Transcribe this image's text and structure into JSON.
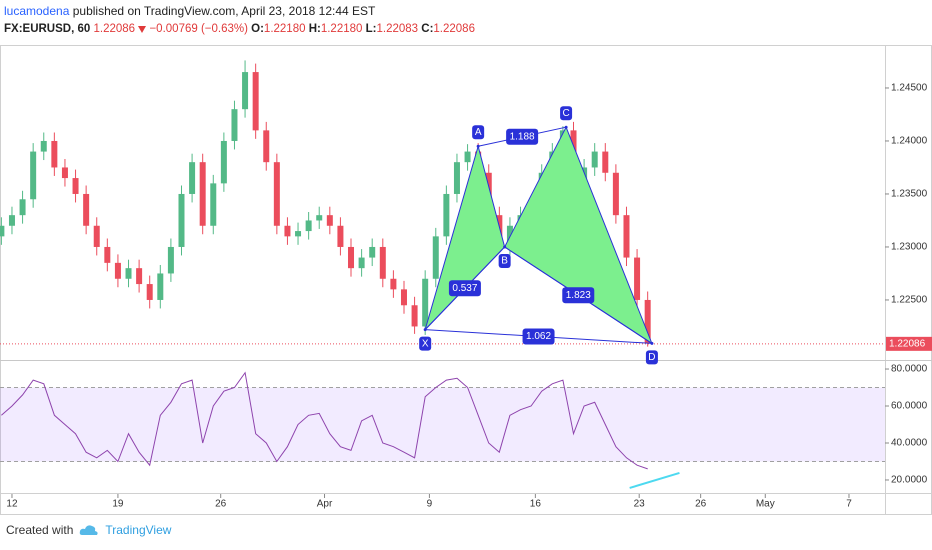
{
  "header": {
    "author": "lucamodena",
    "published": "published on TradingView.com, April 23, 2018 12:44 EST"
  },
  "legend": {
    "symbol": "FX:EURUSD, 60",
    "last": "1.22086",
    "change": "−0.00769 (−0.63%)",
    "open_label": "O:",
    "open": "1.22180",
    "high_label": "H:",
    "high": "1.22180",
    "low_label": "L:",
    "low": "1.22083",
    "close_label": "C:",
    "close": "1.22086"
  },
  "footer": {
    "created": "Created with",
    "brand": "TradingView"
  },
  "chart_data": {
    "type": "candlestick",
    "grid": false,
    "up_color": "#53b987",
    "down_color": "#eb4d5c",
    "x": [
      -1,
      0,
      1,
      2,
      3,
      4,
      5,
      6,
      7,
      8,
      9,
      10,
      11,
      12,
      13,
      14,
      15,
      16,
      17,
      18,
      19,
      20,
      21,
      22,
      23,
      24,
      25,
      26,
      27,
      28,
      29,
      30,
      31,
      32,
      33,
      34,
      35,
      36,
      37,
      38,
      39,
      40,
      41,
      42,
      43,
      44,
      45,
      46,
      47,
      48,
      49,
      50,
      51,
      52,
      53,
      54,
      55,
      56,
      57,
      58,
      59,
      60
    ],
    "candles": [
      [
        1.231,
        1.2328,
        1.2302,
        1.232
      ],
      [
        1.232,
        1.2338,
        1.2312,
        1.233
      ],
      [
        1.233,
        1.2353,
        1.2322,
        1.2345
      ],
      [
        1.2345,
        1.2398,
        1.2337,
        1.239
      ],
      [
        1.239,
        1.2408,
        1.2382,
        1.24
      ],
      [
        1.24,
        1.2408,
        1.2367,
        1.2375
      ],
      [
        1.2375,
        1.2383,
        1.2357,
        1.2365
      ],
      [
        1.2365,
        1.2373,
        1.2342,
        1.235
      ],
      [
        1.235,
        1.2358,
        1.2312,
        1.232
      ],
      [
        1.232,
        1.2328,
        1.2292,
        1.23
      ],
      [
        1.23,
        1.2308,
        1.2277,
        1.2285
      ],
      [
        1.2285,
        1.2293,
        1.2262,
        1.227
      ],
      [
        1.227,
        1.2288,
        1.2262,
        1.228
      ],
      [
        1.228,
        1.2288,
        1.2257,
        1.2265
      ],
      [
        1.2265,
        1.2273,
        1.2242,
        1.225
      ],
      [
        1.225,
        1.2283,
        1.2242,
        1.2275
      ],
      [
        1.2275,
        1.2308,
        1.2267,
        1.23
      ],
      [
        1.23,
        1.2358,
        1.2292,
        1.235
      ],
      [
        1.235,
        1.2388,
        1.2342,
        1.238
      ],
      [
        1.238,
        1.2388,
        1.2312,
        1.232
      ],
      [
        1.232,
        1.2368,
        1.2312,
        1.236
      ],
      [
        1.236,
        1.2408,
        1.2352,
        1.24
      ],
      [
        1.24,
        1.2438,
        1.2392,
        1.243
      ],
      [
        1.243,
        1.2476,
        1.2422,
        1.2465
      ],
      [
        1.2465,
        1.2473,
        1.2402,
        1.241
      ],
      [
        1.241,
        1.2418,
        1.2372,
        1.238
      ],
      [
        1.238,
        1.2388,
        1.2312,
        1.232
      ],
      [
        1.232,
        1.2328,
        1.2302,
        1.231
      ],
      [
        1.231,
        1.2323,
        1.2302,
        1.2315
      ],
      [
        1.2315,
        1.2333,
        1.2307,
        1.2325
      ],
      [
        1.2325,
        1.2338,
        1.2317,
        1.233
      ],
      [
        1.233,
        1.2338,
        1.2312,
        1.232
      ],
      [
        1.232,
        1.2328,
        1.2292,
        1.23
      ],
      [
        1.23,
        1.2308,
        1.2272,
        1.228
      ],
      [
        1.228,
        1.2298,
        1.2272,
        1.229
      ],
      [
        1.229,
        1.2308,
        1.2282,
        1.23
      ],
      [
        1.23,
        1.2308,
        1.2262,
        1.227
      ],
      [
        1.227,
        1.2278,
        1.2252,
        1.226
      ],
      [
        1.226,
        1.2268,
        1.2237,
        1.2245
      ],
      [
        1.2245,
        1.2253,
        1.2218,
        1.2225
      ],
      [
        1.2225,
        1.2278,
        1.2217,
        1.227
      ],
      [
        1.227,
        1.2318,
        1.2262,
        1.231
      ],
      [
        1.231,
        1.2358,
        1.2302,
        1.235
      ],
      [
        1.235,
        1.2388,
        1.2342,
        1.238
      ],
      [
        1.238,
        1.2397,
        1.2372,
        1.239
      ],
      [
        1.239,
        1.2398,
        1.2362,
        1.237
      ],
      [
        1.237,
        1.2378,
        1.2322,
        1.233
      ],
      [
        1.233,
        1.2338,
        1.2297,
        1.23
      ],
      [
        1.23,
        1.2328,
        1.2292,
        1.232
      ],
      [
        1.232,
        1.2338,
        1.2312,
        1.233
      ],
      [
        1.233,
        1.2348,
        1.2322,
        1.234
      ],
      [
        1.234,
        1.2378,
        1.2332,
        1.237
      ],
      [
        1.237,
        1.2398,
        1.2362,
        1.239
      ],
      [
        1.239,
        1.2414,
        1.2382,
        1.241
      ],
      [
        1.241,
        1.2418,
        1.2342,
        1.235
      ],
      [
        1.235,
        1.2383,
        1.2342,
        1.2375
      ],
      [
        1.2375,
        1.2398,
        1.2367,
        1.239
      ],
      [
        1.239,
        1.2398,
        1.2362,
        1.237
      ],
      [
        1.237,
        1.2378,
        1.2322,
        1.233
      ],
      [
        1.233,
        1.2338,
        1.2282,
        1.229
      ],
      [
        1.229,
        1.2298,
        1.2242,
        1.225
      ],
      [
        1.225,
        1.2258,
        1.2206,
        1.2209
      ]
    ],
    "xlim": [
      -1.13,
      82.4
    ],
    "xticks": [
      {
        "value": 0,
        "label": "12"
      },
      {
        "value": 10,
        "label": "19"
      },
      {
        "value": 19.7,
        "label": "26"
      },
      {
        "value": 29.5,
        "label": "Apr"
      },
      {
        "value": 39.4,
        "label": "9"
      },
      {
        "value": 49.4,
        "label": "16"
      },
      {
        "value": 59.2,
        "label": "23"
      },
      {
        "value": 65,
        "label": "26"
      },
      {
        "value": 71.1,
        "label": "May"
      },
      {
        "value": 79,
        "label": "7"
      }
    ],
    "ylim": [
      1.21943,
      1.24896
    ],
    "yticks": [
      {
        "value": 1.225,
        "label": "1.22500"
      },
      {
        "value": 1.23,
        "label": "1.23000"
      },
      {
        "value": 1.235,
        "label": "1.23500"
      },
      {
        "value": 1.24,
        "label": "1.24000"
      },
      {
        "value": 1.245,
        "label": "1.24500"
      }
    ],
    "last_price": {
      "value": 1.22086,
      "label": "1.22086",
      "color": "#eb4d5c"
    },
    "pattern": {
      "fill": "#7cef8e",
      "line_color": "#2a31d8",
      "points": [
        {
          "label": "X",
          "x": 39.0,
          "price": 1.2222
        },
        {
          "label": "A",
          "x": 44.0,
          "price": 1.2395
        },
        {
          "label": "B",
          "x": 46.5,
          "price": 1.23
        },
        {
          "label": "C",
          "x": 52.3,
          "price": 1.2413
        },
        {
          "label": "D",
          "x": 60.4,
          "price": 1.2209
        }
      ],
      "ratios": [
        0.537,
        1.188,
        1.823,
        1.062
      ]
    },
    "rsi": {
      "color": "#8e44ad",
      "band_color": "#9966ff",
      "ylim": [
        13.5,
        83.8
      ],
      "band": [
        30,
        70
      ],
      "yticks": [
        {
          "value": 20,
          "label": "20.0000"
        },
        {
          "value": 40,
          "label": "40.0000"
        },
        {
          "value": 60,
          "label": "60.0000"
        },
        {
          "value": 80,
          "label": "80.0000"
        }
      ],
      "values": [
        55,
        60,
        66,
        74,
        72,
        55,
        50,
        45,
        35,
        32,
        36,
        30,
        45,
        35,
        28,
        55,
        62,
        72,
        74,
        40,
        60,
        68,
        70,
        78,
        45,
        40,
        30,
        38,
        50,
        55,
        56,
        45,
        38,
        36,
        52,
        55,
        40,
        38,
        35,
        32,
        65,
        70,
        74,
        75,
        70,
        55,
        40,
        35,
        55,
        58,
        60,
        68,
        72,
        74,
        45,
        60,
        62,
        50,
        38,
        32,
        28,
        26
      ],
      "trendline": {
        "color": "#4dd9f0",
        "x": [
          58.3,
          63.0
        ],
        "values": [
          15.7,
          23.8
        ]
      }
    }
  }
}
